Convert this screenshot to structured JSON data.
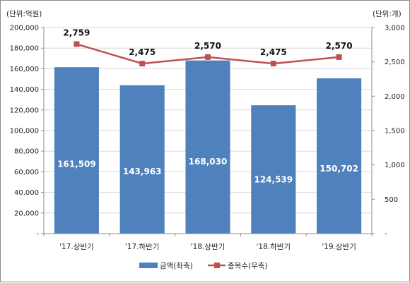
{
  "chart_data": {
    "type": "bar",
    "categories": [
      "'17.상반기",
      "'17.하반기",
      "'18.상반기",
      "'18.하반기",
      "'19.상반기"
    ],
    "series": [
      {
        "name": "금액(좌축)",
        "type": "bar",
        "axis": "left",
        "color": "#4f81bd",
        "values": [
          161509,
          143963,
          168030,
          124539,
          150702
        ],
        "labels": [
          "161,509",
          "143,963",
          "168,030",
          "124,539",
          "150,702"
        ]
      },
      {
        "name": "종목수(우축)",
        "type": "line",
        "axis": "right",
        "color": "#c0504d",
        "values": [
          2759,
          2475,
          2570,
          2475,
          2570
        ],
        "labels": [
          "2,759",
          "2,475",
          "2,570",
          "2,475",
          "2,570"
        ]
      }
    ],
    "left_axis": {
      "unit_label": "(단위:억원)",
      "ylim": [
        0,
        200000
      ],
      "ticks": [
        "-",
        "20,000",
        "40,000",
        "60,000",
        "80,000",
        "100,000",
        "120,000",
        "140,000",
        "160,000",
        "180,000",
        "200,000"
      ]
    },
    "right_axis": {
      "unit_label": "(단위:개)",
      "ylim": [
        0,
        3000
      ],
      "ticks": [
        "-",
        "500",
        "1,000",
        "1,500",
        "2,000",
        "2,500",
        "3,000"
      ]
    },
    "grid": true,
    "legend_position": "bottom"
  }
}
